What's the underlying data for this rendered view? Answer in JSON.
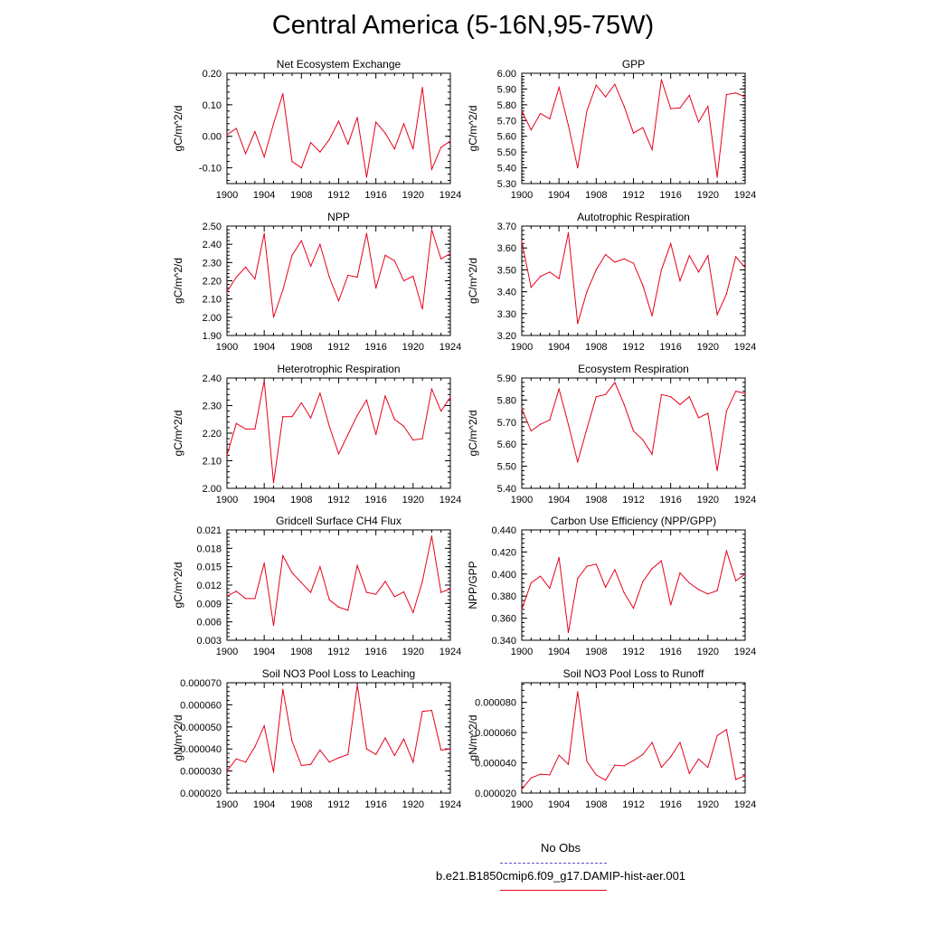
{
  "title": "Central America (5-16N,95-75W)",
  "colors": {
    "model": "#e8001c",
    "obs": "#5555cc",
    "axis": "#000000"
  },
  "legend": {
    "obs_label": "No Obs",
    "model_label": "b.e21.B1850cmip6.f09_g17.DAMIP-hist-aer.001"
  },
  "x_ticks": [
    "1900",
    "1904",
    "1908",
    "1912",
    "1916",
    "1920",
    "1924"
  ],
  "chart_data": [
    {
      "type": "line",
      "title": "Net Ecosystem Exchange",
      "ylabel": "gC/m^2/d",
      "xlim": [
        1900,
        1924
      ],
      "ylim": [
        -0.15,
        0.2
      ],
      "yticks": [
        -0.1,
        0.0,
        0.1,
        0.2
      ],
      "ytick_labels": [
        "-0.10",
        "0.00",
        "0.10",
        "0.20"
      ],
      "x": [
        1900,
        1901,
        1902,
        1903,
        1904,
        1905,
        1906,
        1907,
        1908,
        1909,
        1910,
        1911,
        1912,
        1913,
        1914,
        1915,
        1916,
        1917,
        1918,
        1919,
        1920,
        1921,
        1922,
        1923,
        1924
      ],
      "values": [
        0.005,
        0.025,
        -0.055,
        0.015,
        -0.065,
        0.04,
        0.135,
        -0.08,
        -0.1,
        -0.02,
        -0.05,
        -0.01,
        0.048,
        -0.025,
        0.06,
        -0.13,
        0.045,
        0.01,
        -0.04,
        0.04,
        -0.04,
        0.155,
        -0.105,
        -0.035,
        -0.015
      ]
    },
    {
      "type": "line",
      "title": "GPP",
      "ylabel": "gC/m^2/d",
      "xlim": [
        1900,
        1924
      ],
      "ylim": [
        5.3,
        6.0
      ],
      "yticks": [
        5.3,
        5.4,
        5.5,
        5.6,
        5.7,
        5.8,
        5.9,
        6.0
      ],
      "ytick_labels": [
        "5.30",
        "5.40",
        "5.50",
        "5.60",
        "5.70",
        "5.80",
        "5.90",
        "6.00"
      ],
      "x": [
        1900,
        1901,
        1902,
        1903,
        1904,
        1905,
        1906,
        1907,
        1908,
        1909,
        1910,
        1911,
        1912,
        1913,
        1914,
        1915,
        1916,
        1917,
        1918,
        1919,
        1920,
        1921,
        1922,
        1923,
        1924
      ],
      "values": [
        5.76,
        5.64,
        5.745,
        5.71,
        5.91,
        5.67,
        5.4,
        5.76,
        5.925,
        5.85,
        5.93,
        5.79,
        5.62,
        5.655,
        5.515,
        5.96,
        5.775,
        5.78,
        5.86,
        5.69,
        5.79,
        5.34,
        5.865,
        5.875,
        5.85
      ]
    },
    {
      "type": "line",
      "title": "NPP",
      "ylabel": "gC/m^2/d",
      "xlim": [
        1900,
        1924
      ],
      "ylim": [
        1.9,
        2.5
      ],
      "yticks": [
        1.9,
        2.0,
        2.1,
        2.2,
        2.3,
        2.4,
        2.5
      ],
      "ytick_labels": [
        "1.90",
        "2.00",
        "2.10",
        "2.20",
        "2.30",
        "2.40",
        "2.50"
      ],
      "x": [
        1900,
        1901,
        1902,
        1903,
        1904,
        1905,
        1906,
        1907,
        1908,
        1909,
        1910,
        1911,
        1912,
        1913,
        1914,
        1915,
        1916,
        1917,
        1918,
        1919,
        1920,
        1921,
        1922,
        1923,
        1924
      ],
      "values": [
        2.14,
        2.22,
        2.275,
        2.21,
        2.46,
        2.0,
        2.15,
        2.34,
        2.42,
        2.28,
        2.4,
        2.22,
        2.09,
        2.23,
        2.22,
        2.46,
        2.16,
        2.34,
        2.31,
        2.2,
        2.225,
        2.045,
        2.48,
        2.32,
        2.35
      ]
    },
    {
      "type": "line",
      "title": "Autotrophic Respiration",
      "ylabel": "gC/m^2/d",
      "xlim": [
        1900,
        1924
      ],
      "ylim": [
        3.2,
        3.7
      ],
      "yticks": [
        3.2,
        3.3,
        3.4,
        3.5,
        3.6,
        3.7
      ],
      "ytick_labels": [
        "3.20",
        "3.30",
        "3.40",
        "3.50",
        "3.60",
        "3.70"
      ],
      "x": [
        1900,
        1901,
        1902,
        1903,
        1904,
        1905,
        1906,
        1907,
        1908,
        1909,
        1910,
        1911,
        1912,
        1913,
        1914,
        1915,
        1916,
        1917,
        1918,
        1919,
        1920,
        1921,
        1922,
        1923,
        1924
      ],
      "values": [
        3.63,
        3.42,
        3.47,
        3.49,
        3.46,
        3.67,
        3.255,
        3.4,
        3.5,
        3.57,
        3.535,
        3.55,
        3.53,
        3.43,
        3.29,
        3.5,
        3.62,
        3.45,
        3.565,
        3.49,
        3.565,
        3.295,
        3.39,
        3.56,
        3.51
      ]
    },
    {
      "type": "line",
      "title": "Heterotrophic Respiration",
      "ylabel": "gC/m^2/d",
      "xlim": [
        1900,
        1924
      ],
      "ylim": [
        2.0,
        2.4
      ],
      "yticks": [
        2.0,
        2.1,
        2.2,
        2.3,
        2.4
      ],
      "ytick_labels": [
        "2.00",
        "2.10",
        "2.20",
        "2.30",
        "2.40"
      ],
      "x": [
        1900,
        1901,
        1902,
        1903,
        1904,
        1905,
        1906,
        1907,
        1908,
        1909,
        1910,
        1911,
        1912,
        1913,
        1914,
        1915,
        1916,
        1917,
        1918,
        1919,
        1920,
        1921,
        1922,
        1923,
        1924
      ],
      "values": [
        2.12,
        2.235,
        2.215,
        2.215,
        2.39,
        2.02,
        2.26,
        2.26,
        2.31,
        2.255,
        2.345,
        2.225,
        2.125,
        2.195,
        2.265,
        2.32,
        2.195,
        2.335,
        2.25,
        2.225,
        2.175,
        2.18,
        2.36,
        2.28,
        2.33
      ]
    },
    {
      "type": "line",
      "title": "Ecosystem Respiration",
      "ylabel": "gC/m^2/d",
      "xlim": [
        1900,
        1924
      ],
      "ylim": [
        5.4,
        5.9
      ],
      "yticks": [
        5.4,
        5.5,
        5.6,
        5.7,
        5.8,
        5.9
      ],
      "ytick_labels": [
        "5.40",
        "5.50",
        "5.60",
        "5.70",
        "5.80",
        "5.90"
      ],
      "x": [
        1900,
        1901,
        1902,
        1903,
        1904,
        1905,
        1906,
        1907,
        1908,
        1909,
        1910,
        1911,
        1912,
        1913,
        1914,
        1915,
        1916,
        1917,
        1918,
        1919,
        1920,
        1921,
        1922,
        1923,
        1924
      ],
      "values": [
        5.76,
        5.66,
        5.69,
        5.71,
        5.85,
        5.69,
        5.52,
        5.67,
        5.815,
        5.825,
        5.88,
        5.78,
        5.66,
        5.62,
        5.555,
        5.825,
        5.815,
        5.78,
        5.815,
        5.72,
        5.74,
        5.48,
        5.75,
        5.84,
        5.83
      ]
    },
    {
      "type": "line",
      "title": "Gridcell Surface CH4 Flux",
      "ylabel": "gC/m^2/d",
      "xlim": [
        1900,
        1924
      ],
      "ylim": [
        0.003,
        0.021
      ],
      "yticks": [
        0.003,
        0.006,
        0.009,
        0.012,
        0.015,
        0.018,
        0.021
      ],
      "ytick_labels": [
        "0.003",
        "0.006",
        "0.009",
        "0.012",
        "0.015",
        "0.018",
        "0.021"
      ],
      "x": [
        1900,
        1901,
        1902,
        1903,
        1904,
        1905,
        1906,
        1907,
        1908,
        1909,
        1910,
        1911,
        1912,
        1913,
        1914,
        1915,
        1916,
        1917,
        1918,
        1919,
        1920,
        1921,
        1922,
        1923,
        1924
      ],
      "values": [
        0.0102,
        0.011,
        0.0098,
        0.0098,
        0.0156,
        0.0054,
        0.0168,
        0.014,
        0.0124,
        0.0108,
        0.015,
        0.0096,
        0.0084,
        0.0079,
        0.0152,
        0.0108,
        0.0105,
        0.0126,
        0.0101,
        0.0109,
        0.0075,
        0.0126,
        0.02,
        0.0108,
        0.0114
      ]
    },
    {
      "type": "line",
      "title": "Carbon Use Efficiency (NPP/GPP)",
      "ylabel": "NPP/GPP",
      "xlim": [
        1900,
        1924
      ],
      "ylim": [
        0.34,
        0.44
      ],
      "yticks": [
        0.34,
        0.36,
        0.38,
        0.4,
        0.42,
        0.44
      ],
      "ytick_labels": [
        "0.340",
        "0.360",
        "0.380",
        "0.400",
        "0.420",
        "0.440"
      ],
      "x": [
        1900,
        1901,
        1902,
        1903,
        1904,
        1905,
        1906,
        1907,
        1908,
        1909,
        1910,
        1911,
        1912,
        1913,
        1914,
        1915,
        1916,
        1917,
        1918,
        1919,
        1920,
        1921,
        1922,
        1923,
        1924
      ],
      "values": [
        0.368,
        0.392,
        0.398,
        0.387,
        0.415,
        0.347,
        0.396,
        0.407,
        0.409,
        0.388,
        0.404,
        0.383,
        0.369,
        0.393,
        0.405,
        0.412,
        0.372,
        0.401,
        0.392,
        0.386,
        0.382,
        0.385,
        0.421,
        0.394,
        0.4
      ]
    },
    {
      "type": "line",
      "title": "Soil NO3 Pool Loss to Leaching",
      "ylabel": "gN/m^2/d",
      "xlim": [
        1900,
        1924
      ],
      "ylim": [
        2e-05,
        7e-05
      ],
      "yticks": [
        2e-05,
        3e-05,
        4e-05,
        5e-05,
        6e-05,
        7e-05
      ],
      "ytick_labels": [
        "0.000020",
        "0.000030",
        "0.000040",
        "0.000050",
        "0.000060",
        "0.000070"
      ],
      "x": [
        1900,
        1901,
        1902,
        1903,
        1904,
        1905,
        1906,
        1907,
        1908,
        1909,
        1910,
        1911,
        1912,
        1913,
        1914,
        1915,
        1916,
        1917,
        1918,
        1919,
        1920,
        1921,
        1922,
        1923,
        1924
      ],
      "values": [
        3e-05,
        3.55e-05,
        3.4e-05,
        4.1e-05,
        5.05e-05,
        2.95e-05,
        6.7e-05,
        4.35e-05,
        3.25e-05,
        3.3e-05,
        3.95e-05,
        3.4e-05,
        3.6e-05,
        3.75e-05,
        6.9e-05,
        4e-05,
        3.75e-05,
        4.5e-05,
        3.7e-05,
        4.45e-05,
        3.4e-05,
        5.7e-05,
        5.75e-05,
        3.95e-05,
        4e-05
      ]
    },
    {
      "type": "line",
      "title": "Soil NO3 Pool Loss to Runoff",
      "ylabel": "gN/m^2/d",
      "xlim": [
        1900,
        1924
      ],
      "ylim": [
        2e-05,
        9.3e-05
      ],
      "yticks": [
        2e-05,
        4e-05,
        6e-05,
        8e-05
      ],
      "ytick_labels": [
        "0.000020",
        "0.000040",
        "0.000060",
        "0.000080"
      ],
      "x": [
        1900,
        1901,
        1902,
        1903,
        1904,
        1905,
        1906,
        1907,
        1908,
        1909,
        1910,
        1911,
        1912,
        1913,
        1914,
        1915,
        1916,
        1917,
        1918,
        1919,
        1920,
        1921,
        1922,
        1923,
        1924
      ],
      "values": [
        2.25e-05,
        3e-05,
        3.25e-05,
        3.2e-05,
        4.5e-05,
        3.9e-05,
        8.7e-05,
        4.1e-05,
        3.2e-05,
        2.85e-05,
        3.85e-05,
        3.8e-05,
        4.15e-05,
        4.55e-05,
        5.35e-05,
        3.7e-05,
        4.4e-05,
        5.35e-05,
        3.3e-05,
        4.25e-05,
        3.7e-05,
        5.8e-05,
        6.2e-05,
        2.9e-05,
        3.15e-05
      ]
    }
  ]
}
